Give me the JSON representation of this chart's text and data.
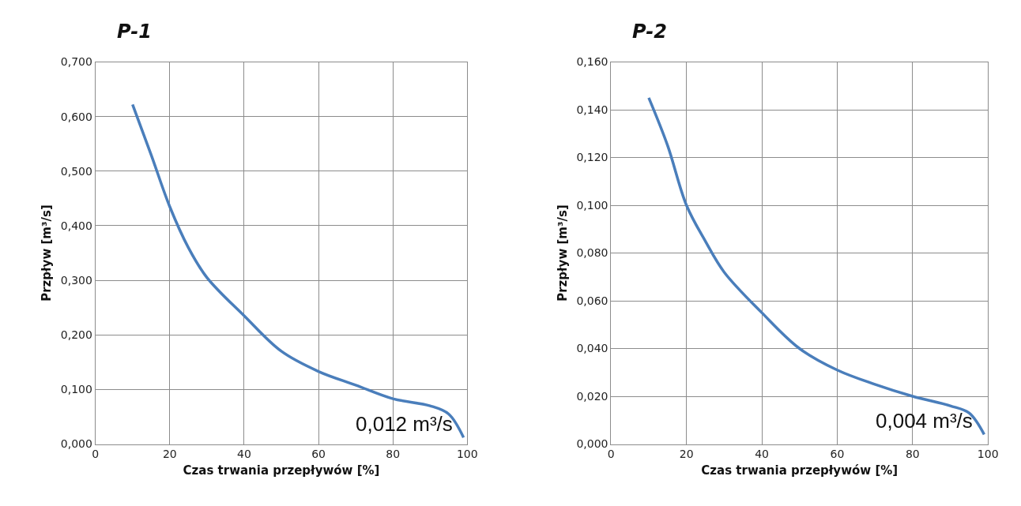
{
  "chart_data": [
    {
      "type": "line",
      "title": "P-1",
      "xlabel": "Czas trwania przepływów [%]",
      "ylabel": "Przpływ [m³/s]",
      "x": [
        10,
        15,
        20,
        25,
        30,
        40,
        50,
        60,
        70,
        80,
        90,
        95,
        99
      ],
      "series": [
        {
          "color": "#4a7ebb",
          "values": [
            0.622,
            0.53,
            0.435,
            0.36,
            0.305,
            0.235,
            0.17,
            0.133,
            0.108,
            0.083,
            0.07,
            0.055,
            0.012
          ]
        }
      ],
      "xlim": [
        0,
        100
      ],
      "xticks": [
        0,
        20,
        40,
        60,
        80,
        100
      ],
      "ylim": [
        0,
        0.7
      ],
      "yticks": [
        {
          "value": 0,
          "label": "0,000"
        },
        {
          "value": 0.1,
          "label": "0,100"
        },
        {
          "value": 0.2,
          "label": "0,200"
        },
        {
          "value": 0.3,
          "label": "0,300"
        },
        {
          "value": 0.4,
          "label": "0,400"
        },
        {
          "value": 0.5,
          "label": "0,500"
        },
        {
          "value": 0.6,
          "label": "0,600"
        },
        {
          "value": 0.7,
          "label": "0,700"
        }
      ],
      "grid": true,
      "marker": "none",
      "line_style": "solid",
      "annotations": [
        {
          "text": "0,012 m³/s",
          "x": 99,
          "y": 0.012
        }
      ]
    },
    {
      "type": "line",
      "title": "P-2",
      "xlabel": "Czas trwania przepływów [%]",
      "ylabel": "Przpływ [m³/s]",
      "x": [
        10,
        15,
        20,
        25,
        30,
        40,
        50,
        60,
        70,
        80,
        90,
        95,
        99
      ],
      "series": [
        {
          "color": "#4a7ebb",
          "values": [
            0.145,
            0.125,
            0.1,
            0.085,
            0.072,
            0.055,
            0.04,
            0.031,
            0.025,
            0.02,
            0.016,
            0.013,
            0.004
          ]
        }
      ],
      "xlim": [
        0,
        100
      ],
      "xticks": [
        0,
        20,
        40,
        60,
        80,
        100
      ],
      "ylim": [
        0,
        0.16
      ],
      "yticks": [
        {
          "value": 0,
          "label": "0,000"
        },
        {
          "value": 0.02,
          "label": "0,020"
        },
        {
          "value": 0.04,
          "label": "0,040"
        },
        {
          "value": 0.06,
          "label": "0,060"
        },
        {
          "value": 0.08,
          "label": "0,080"
        },
        {
          "value": 0.1,
          "label": "0,100"
        },
        {
          "value": 0.12,
          "label": "0,120"
        },
        {
          "value": 0.14,
          "label": "0,140"
        },
        {
          "value": 0.16,
          "label": "0,160"
        }
      ],
      "grid": true,
      "marker": "none",
      "line_style": "solid",
      "annotations": [
        {
          "text": "0,004 m³/s",
          "x": 99,
          "y": 0.004
        }
      ]
    }
  ]
}
